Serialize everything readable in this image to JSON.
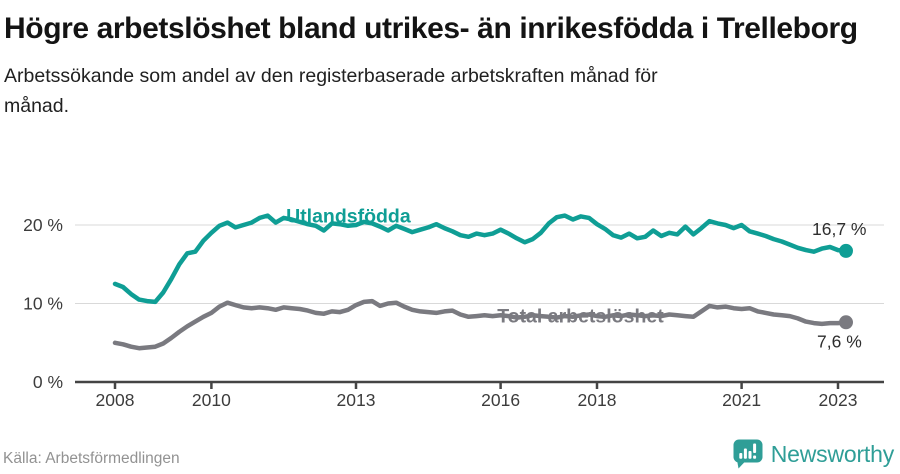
{
  "footer": {
    "brand": "Newsworthy",
    "brand_color": "#2f9e97",
    "logo_icon": "newsworthy-speech-bubble-bar-chart-icon"
  },
  "chart_data": {
    "type": "line",
    "title": "Högre arbetslöshet bland utrikes- än inrikesfödda i Trelleborg",
    "subtitle": "Arbetssökande som andel av den registerbaserade arbetskraften månad för månad.",
    "source": "Källa: Arbetsförmedlingen",
    "x_unit": "year, monthly data plotted",
    "x_start": 2008.0,
    "x_step": 0.16667,
    "x_end": 2023.17,
    "xlim": [
      2007.2,
      2023.95
    ],
    "ylim": [
      0,
      25
    ],
    "grid": "horizontal",
    "legend_position": "inline-labels",
    "x_ticks": [
      {
        "value": 2008,
        "label": "2008"
      },
      {
        "value": 2010,
        "label": "2010"
      },
      {
        "value": 2013,
        "label": "2013"
      },
      {
        "value": 2016,
        "label": "2016"
      },
      {
        "value": 2018,
        "label": "2018"
      },
      {
        "value": 2021,
        "label": "2021"
      },
      {
        "value": 2023,
        "label": "2023"
      }
    ],
    "y_ticks": [
      {
        "value": 0,
        "label": "0 %"
      },
      {
        "value": 10,
        "label": "10 %"
      },
      {
        "value": 20,
        "label": "20 %"
      }
    ],
    "series": [
      {
        "name": "Utlandsfödda",
        "color": "#0f9e95",
        "end_value": 16.7,
        "end_label": "16,7 %",
        "label_pos": {
          "year": 2011.55,
          "value": 20.3
        },
        "values": [
          12.5,
          12.1,
          11.2,
          10.5,
          10.3,
          10.2,
          11.4,
          13.1,
          15.0,
          16.4,
          16.6,
          18.0,
          19.0,
          19.9,
          20.3,
          19.7,
          20.0,
          20.3,
          20.9,
          21.2,
          20.3,
          20.9,
          20.7,
          20.4,
          20.1,
          19.9,
          19.3,
          20.2,
          20.1,
          19.9,
          20.0,
          20.4,
          20.2,
          19.8,
          19.3,
          19.9,
          19.5,
          19.1,
          19.4,
          19.7,
          20.1,
          19.6,
          19.2,
          18.7,
          18.5,
          18.9,
          18.7,
          18.9,
          19.4,
          18.9,
          18.3,
          17.8,
          18.2,
          19.0,
          20.2,
          21.0,
          21.2,
          20.7,
          21.1,
          20.9,
          20.1,
          19.5,
          18.7,
          18.4,
          18.9,
          18.3,
          18.5,
          19.3,
          18.6,
          19.0,
          18.8,
          19.8,
          18.8,
          19.6,
          20.5,
          20.2,
          20.0,
          19.6,
          20.0,
          19.2,
          18.9,
          18.6,
          18.2,
          17.9,
          17.5,
          17.1,
          16.8,
          16.6,
          17.0,
          17.2,
          16.8,
          16.7
        ]
      },
      {
        "name": "Total arbetslöshet",
        "color": "#7a7a80",
        "end_value": 7.6,
        "end_label": "7,6 %",
        "label_pos": {
          "year": 2015.93,
          "value": 7.6
        },
        "values": [
          5.0,
          4.8,
          4.5,
          4.3,
          4.4,
          4.5,
          4.9,
          5.6,
          6.4,
          7.1,
          7.7,
          8.3,
          8.8,
          9.6,
          10.1,
          9.8,
          9.5,
          9.4,
          9.5,
          9.4,
          9.2,
          9.5,
          9.4,
          9.3,
          9.1,
          8.8,
          8.7,
          9.0,
          8.9,
          9.2,
          9.8,
          10.2,
          10.3,
          9.7,
          10.0,
          10.1,
          9.6,
          9.2,
          9.0,
          8.9,
          8.8,
          9.0,
          9.1,
          8.6,
          8.3,
          8.4,
          8.5,
          8.4,
          8.5,
          8.4,
          8.2,
          8.3,
          8.5,
          8.4,
          8.3,
          8.2,
          8.4,
          8.3,
          8.5,
          8.6,
          8.4,
          8.3,
          8.5,
          8.4,
          8.6,
          8.5,
          8.4,
          8.5,
          8.4,
          8.6,
          8.5,
          8.4,
          8.3,
          9.0,
          9.7,
          9.5,
          9.6,
          9.4,
          9.3,
          9.4,
          9.0,
          8.8,
          8.6,
          8.5,
          8.4,
          8.1,
          7.7,
          7.5,
          7.4,
          7.5,
          7.5,
          7.6
        ]
      }
    ]
  }
}
